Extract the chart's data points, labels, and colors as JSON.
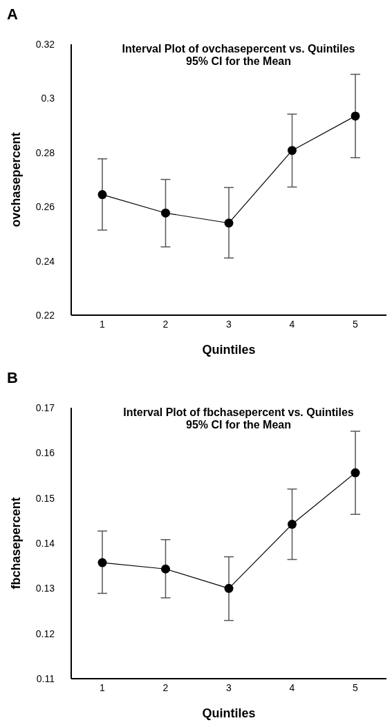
{
  "chart_data": [
    {
      "type": "line",
      "title": "Interval Plot of ovchasepercent vs. Quintiles\n95% CI for the Mean",
      "xlabel": "Quintiles",
      "ylabel": "ovchasepercent",
      "annotations": [
        "A"
      ],
      "categories": [
        "1",
        "2",
        "3",
        "4",
        "5"
      ],
      "series": [
        {
          "color": "#000000",
          "values": [
            0.2645,
            0.2577,
            0.254,
            0.2808,
            0.2935
          ],
          "errors": [
            [
              0.2514,
              0.2777
            ],
            [
              0.2452,
              0.2701
            ],
            [
              0.2411,
              0.2671
            ],
            [
              0.2673,
              0.2942
            ],
            [
              0.2781,
              0.3089
            ]
          ]
        }
      ],
      "ylim": [
        0.22,
        0.32
      ],
      "yticks": [
        0.22,
        0.24,
        0.26,
        0.28,
        0.3,
        0.32
      ],
      "grid": false,
      "legend": false,
      "marker": "circle",
      "line_style": "solid"
    },
    {
      "type": "line",
      "title": "Interval Plot of fbchasepercent vs. Quintiles\n95% CI for the Mean",
      "xlabel": "Quintiles",
      "ylabel": "fbchasepercent",
      "annotations": [
        "B"
      ],
      "categories": [
        "1",
        "2",
        "3",
        "4",
        "5"
      ],
      "series": [
        {
          "color": "#000000",
          "values": [
            0.1357,
            0.1343,
            0.13,
            0.1442,
            0.1556
          ],
          "errors": [
            [
              0.1289,
              0.1427
            ],
            [
              0.1279,
              0.1408
            ],
            [
              0.1229,
              0.137
            ],
            [
              0.1364,
              0.152
            ],
            [
              0.1464,
              0.1648
            ]
          ]
        }
      ],
      "ylim": [
        0.11,
        0.17
      ],
      "yticks": [
        0.11,
        0.12,
        0.13,
        0.14,
        0.15,
        0.16,
        0.17
      ],
      "grid": false,
      "legend": false,
      "marker": "circle",
      "line_style": "solid"
    }
  ]
}
